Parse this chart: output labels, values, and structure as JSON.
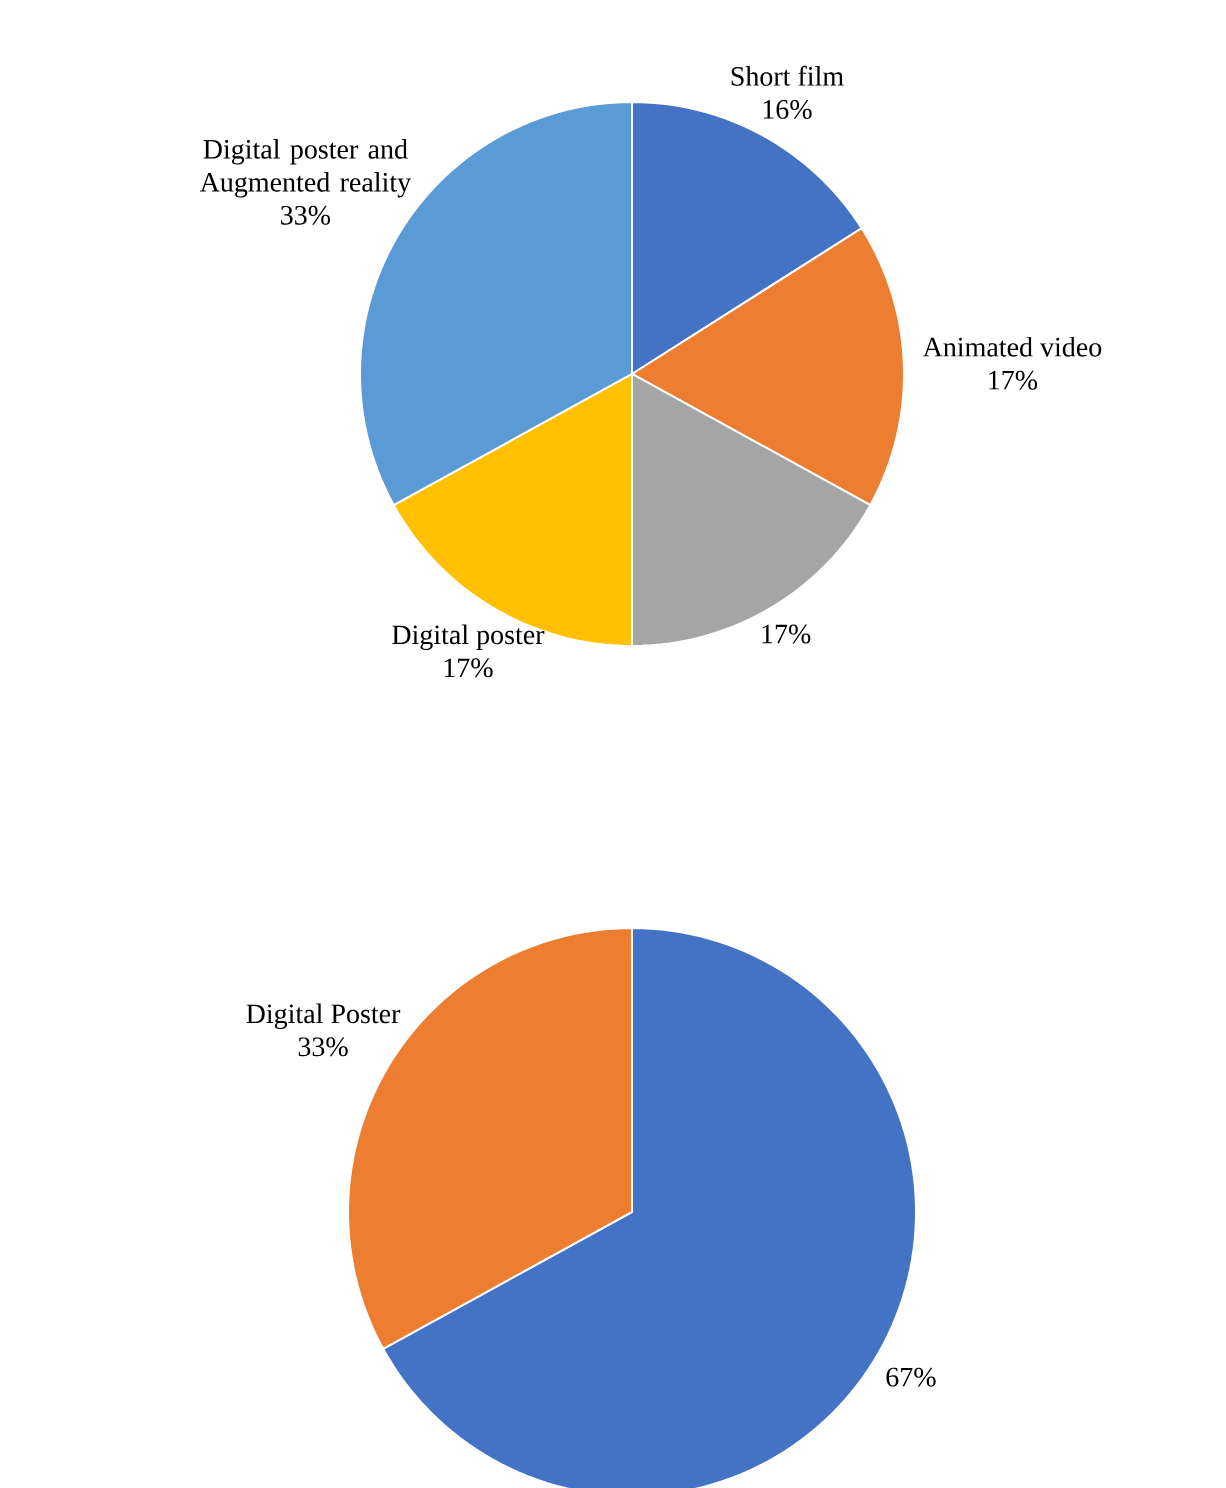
{
  "chart_data": [
    {
      "type": "pie",
      "categories": [
        "Short film",
        "Animated video",
        null,
        "Digital poster",
        "Digital poster and Augmented reality"
      ],
      "values": [
        16,
        17,
        17,
        17,
        33
      ],
      "value_labels": [
        "16%",
        "17%",
        "17%",
        "17%",
        "33%"
      ],
      "colors": [
        "#4472c4",
        "#ed7d31",
        "#a5a5a5",
        "#ffc000",
        "#5b9bd5"
      ]
    },
    {
      "type": "pie",
      "categories": [
        null,
        "Digital Poster"
      ],
      "values": [
        67,
        33
      ],
      "value_labels": [
        "67%",
        "33%"
      ],
      "colors": [
        "#4472c4",
        "#ed7d31"
      ]
    }
  ]
}
